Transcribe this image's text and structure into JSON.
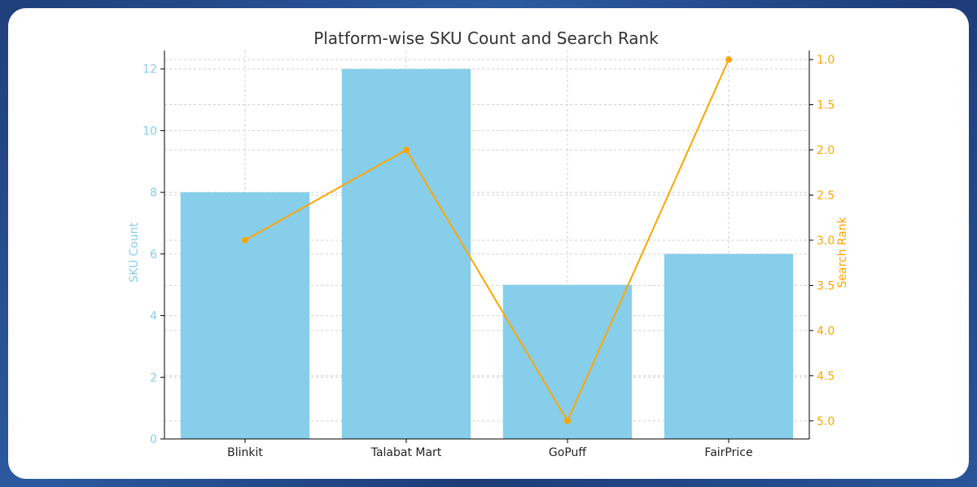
{
  "chart_data": {
    "type": "bar",
    "title": "Platform-wise SKU Count and Search Rank",
    "categories": [
      "Blinkit",
      "Talabat Mart",
      "GoPuff",
      "FairPrice"
    ],
    "series": [
      {
        "name": "SKU Count",
        "type": "bar",
        "axis": "left",
        "values": [
          8,
          12,
          5,
          6
        ]
      },
      {
        "name": "Search Rank",
        "type": "line",
        "axis": "right",
        "values": [
          3.0,
          2.0,
          5.0,
          1.0
        ]
      }
    ],
    "ylabel": "SKU Count",
    "ylabel_right": "Search Rank",
    "ylim": [
      0,
      12.6
    ],
    "ylim_right_inverted": [
      5.2,
      0.9
    ],
    "yticks": [
      "0",
      "2",
      "4",
      "6",
      "8",
      "10",
      "12"
    ],
    "yticks_right": [
      "1.0",
      "1.5",
      "2.0",
      "2.5",
      "3.0",
      "3.5",
      "4.0",
      "4.5",
      "5.0"
    ],
    "grid": true,
    "colors": {
      "bar": "#87ceeb",
      "line": "#ffa500",
      "left_axis_text": "#87ceeb",
      "right_axis_text": "#ffa500"
    }
  }
}
